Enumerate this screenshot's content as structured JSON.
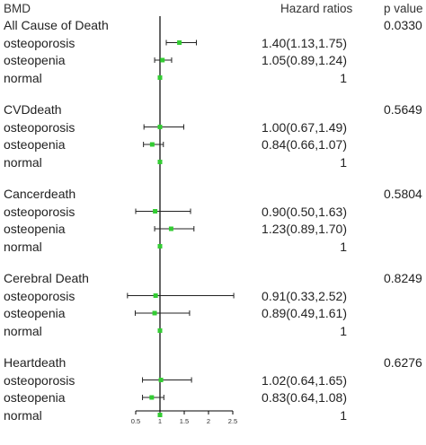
{
  "headers": {
    "label": "BMD",
    "hazard": "Hazard ratios",
    "pvalue": "p value"
  },
  "colors": {
    "point": "#33cc33",
    "line": "#000000",
    "ci": "#222222"
  },
  "chart_data": {
    "type": "forest",
    "title": "",
    "reference_value": 1,
    "x_ticks": [
      "0.5",
      "1",
      "1.5",
      "2",
      "2.5"
    ],
    "xlim": [
      0.5,
      2.5
    ],
    "groups": [
      {
        "name": "All Cause of Death",
        "p_value": "0.0330",
        "rows": [
          {
            "label": "osteoporosis",
            "hr": 1.4,
            "lo": 1.13,
            "hi": 1.75,
            "text": "1.40(1.13,1.75)"
          },
          {
            "label": "osteopenia",
            "hr": 1.05,
            "lo": 0.89,
            "hi": 1.24,
            "text": "1.05(0.89,1.24)"
          },
          {
            "label": "normal",
            "hr": 1,
            "lo": 1,
            "hi": 1,
            "text": "1"
          }
        ]
      },
      {
        "name": "CVDdeath",
        "p_value": "0.5649",
        "rows": [
          {
            "label": "osteoporosis",
            "hr": 1.0,
            "lo": 0.67,
            "hi": 1.49,
            "text": "1.00(0.67,1.49)"
          },
          {
            "label": "osteopenia",
            "hr": 0.84,
            "lo": 0.66,
            "hi": 1.07,
            "text": "0.84(0.66,1.07)"
          },
          {
            "label": "normal",
            "hr": 1,
            "lo": 1,
            "hi": 1,
            "text": "1"
          }
        ]
      },
      {
        "name": "Cancerdeath",
        "p_value": "0.5804",
        "rows": [
          {
            "label": "osteoporosis",
            "hr": 0.9,
            "lo": 0.5,
            "hi": 1.63,
            "text": "0.90(0.50,1.63)"
          },
          {
            "label": "osteopenia",
            "hr": 1.23,
            "lo": 0.89,
            "hi": 1.7,
            "text": "1.23(0.89,1.70)"
          },
          {
            "label": "normal",
            "hr": 1,
            "lo": 1,
            "hi": 1,
            "text": "1"
          }
        ]
      },
      {
        "name": "Cerebral Death",
        "p_value": "0.8249",
        "rows": [
          {
            "label": "osteoporosis",
            "hr": 0.91,
            "lo": 0.33,
            "hi": 2.52,
            "text": "0.91(0.33,2.52)"
          },
          {
            "label": "osteopenia",
            "hr": 0.89,
            "lo": 0.49,
            "hi": 1.61,
            "text": "0.89(0.49,1.61)"
          },
          {
            "label": "normal",
            "hr": 1,
            "lo": 1,
            "hi": 1,
            "text": "1"
          }
        ]
      },
      {
        "name": "Heartdeath",
        "p_value": "0.6276",
        "rows": [
          {
            "label": "osteoporosis",
            "hr": 1.02,
            "lo": 0.64,
            "hi": 1.65,
            "text": "1.02(0.64,1.65)"
          },
          {
            "label": "osteopenia",
            "hr": 0.83,
            "lo": 0.64,
            "hi": 1.08,
            "text": "0.83(0.64,1.08)"
          },
          {
            "label": "normal",
            "hr": 1,
            "lo": 1,
            "hi": 1,
            "text": "1"
          }
        ]
      }
    ]
  }
}
